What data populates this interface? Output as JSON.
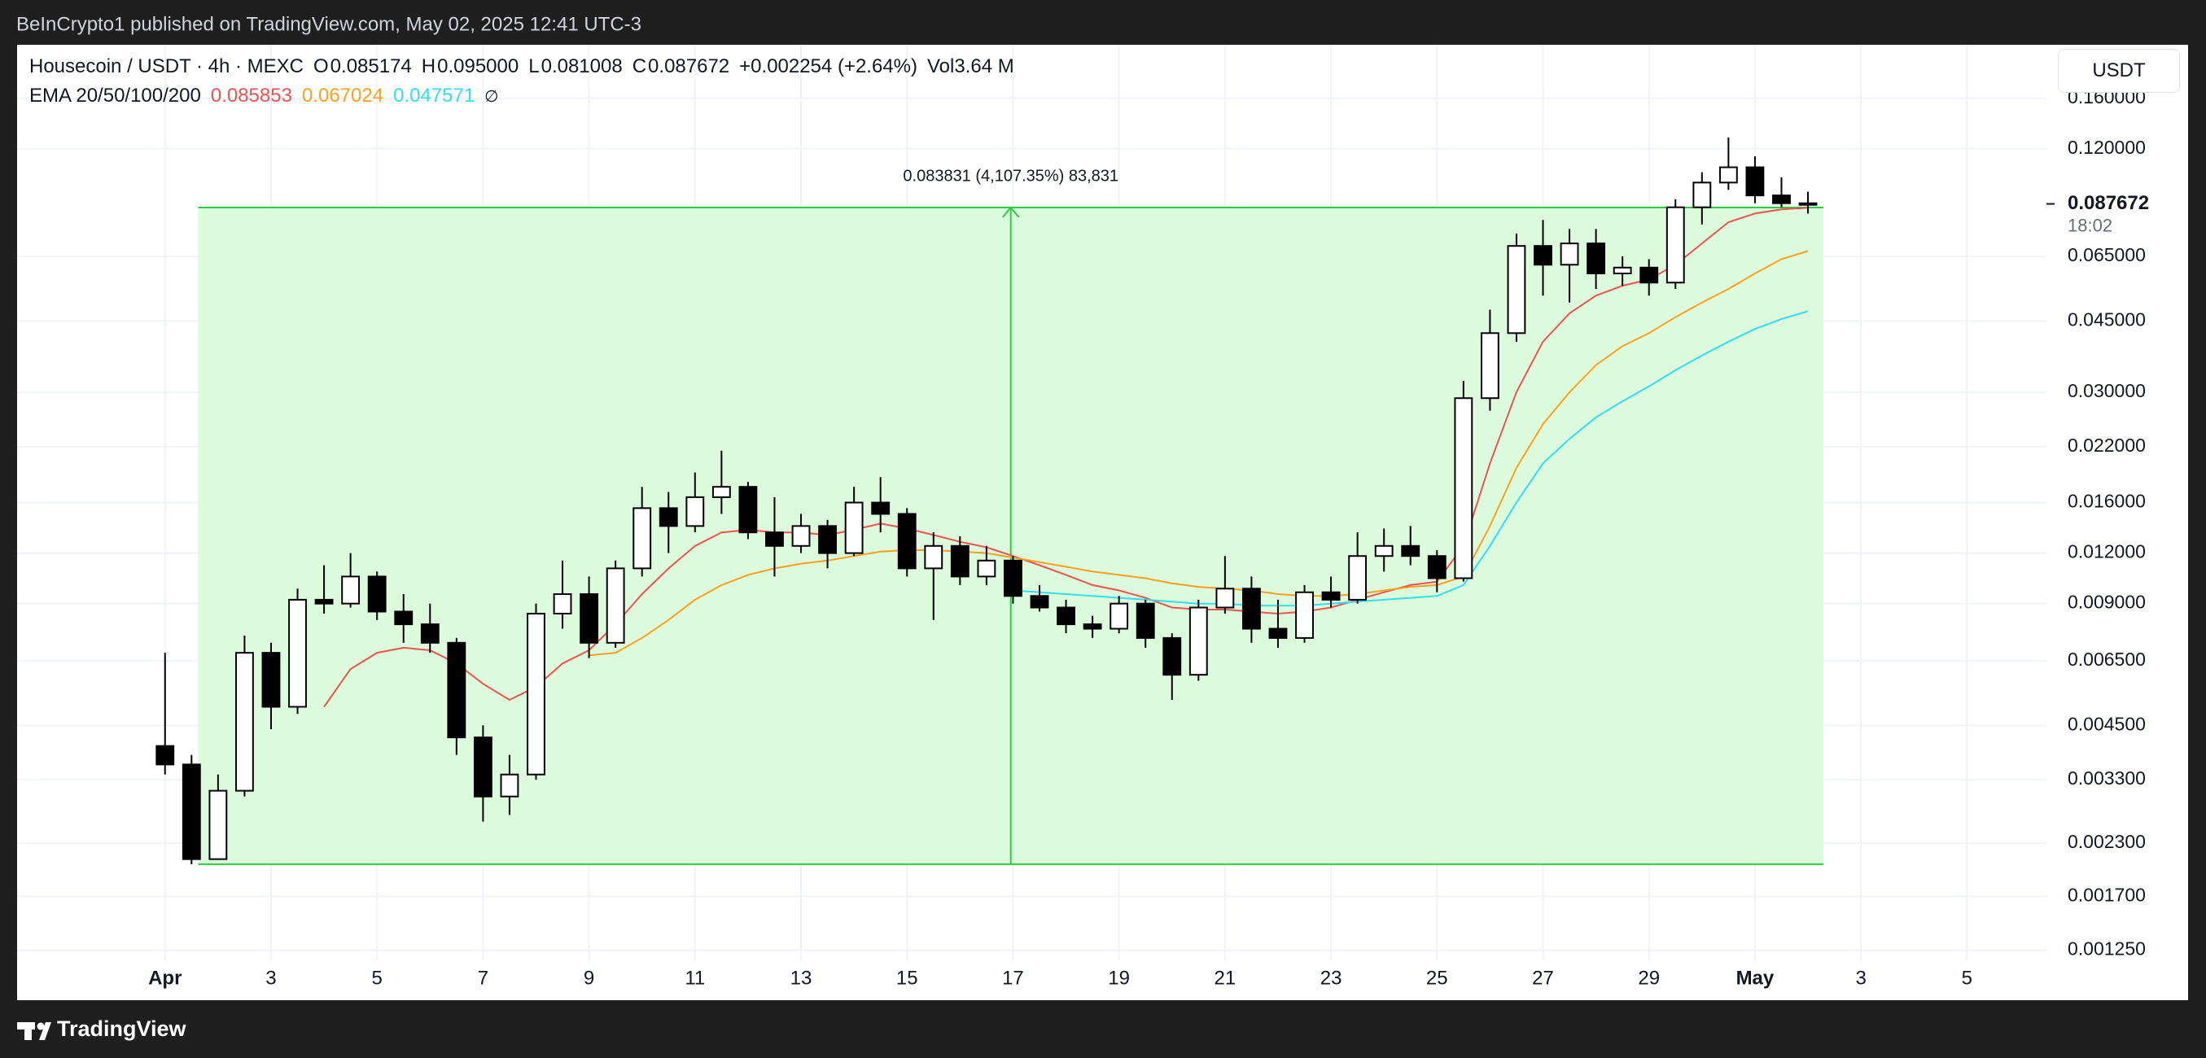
{
  "header": {
    "text": "BeInCrypto1 published on TradingView.com, May 02, 2025 12:41 UTC-3"
  },
  "footer": {
    "brand": "TradingView"
  },
  "chart_data": {
    "type": "candlestick",
    "legend": {
      "symbol": "Housecoin / USDT · 4h · MEXC",
      "ohlc": [
        {
          "label": "O",
          "value": "0.085174"
        },
        {
          "label": "H",
          "value": "0.095000"
        },
        {
          "label": "L",
          "value": "0.081008"
        },
        {
          "label": "C",
          "value": "0.087672"
        }
      ],
      "change": "+0.002254 (+2.64%)",
      "volume_label": "Vol",
      "volume": "3.64 M",
      "ema_label": "EMA 20/50/100/200",
      "ema_hidden": "∅"
    },
    "currency": "USDT",
    "log_scale": true,
    "grid": true,
    "up_color": "#ffffff",
    "down_color": "#000000",
    "x": [
      "2025-04-01T00:00",
      "2025-04-01T12:00",
      "2025-04-02T00:00",
      "2025-04-02T12:00",
      "2025-04-03T00:00",
      "2025-04-03T12:00",
      "2025-04-04T00:00",
      "2025-04-04T12:00",
      "2025-04-05T00:00",
      "2025-04-05T12:00",
      "2025-04-06T00:00",
      "2025-04-06T12:00",
      "2025-04-07T00:00",
      "2025-04-07T12:00",
      "2025-04-08T00:00",
      "2025-04-08T12:00",
      "2025-04-09T00:00",
      "2025-04-09T12:00",
      "2025-04-10T00:00",
      "2025-04-10T12:00",
      "2025-04-11T00:00",
      "2025-04-11T12:00",
      "2025-04-12T00:00",
      "2025-04-12T12:00",
      "2025-04-13T00:00",
      "2025-04-13T12:00",
      "2025-04-14T00:00",
      "2025-04-14T12:00",
      "2025-04-15T00:00",
      "2025-04-15T12:00",
      "2025-04-16T00:00",
      "2025-04-16T12:00",
      "2025-04-17T00:00",
      "2025-04-17T12:00",
      "2025-04-18T00:00",
      "2025-04-18T12:00",
      "2025-04-19T00:00",
      "2025-04-19T12:00",
      "2025-04-20T00:00",
      "2025-04-20T12:00",
      "2025-04-21T00:00",
      "2025-04-21T12:00",
      "2025-04-22T00:00",
      "2025-04-22T12:00",
      "2025-04-23T00:00",
      "2025-04-23T12:00",
      "2025-04-24T00:00",
      "2025-04-24T12:00",
      "2025-04-25T00:00",
      "2025-04-25T12:00",
      "2025-04-26T00:00",
      "2025-04-26T12:00",
      "2025-04-27T00:00",
      "2025-04-27T12:00",
      "2025-04-28T00:00",
      "2025-04-28T12:00",
      "2025-04-29T00:00",
      "2025-04-29T12:00",
      "2025-04-30T00:00",
      "2025-04-30T12:00",
      "2025-05-01T00:00",
      "2025-05-01T12:00",
      "2025-05-02T00:00"
    ],
    "open": [
      0.004,
      0.0036,
      0.0021,
      0.0031,
      0.0068,
      0.005,
      0.0092,
      0.009,
      0.0105,
      0.0086,
      0.008,
      0.0072,
      0.0042,
      0.003,
      0.0034,
      0.0085,
      0.0095,
      0.0072,
      0.011,
      0.0155,
      0.014,
      0.0165,
      0.0175,
      0.0135,
      0.0125,
      0.014,
      0.012,
      0.016,
      0.015,
      0.011,
      0.0125,
      0.0105,
      0.0115,
      0.0094,
      0.0088,
      0.008,
      0.0078,
      0.009,
      0.0074,
      0.006,
      0.0088,
      0.0098,
      0.0078,
      0.0074,
      0.0096,
      0.0092,
      0.0118,
      0.0125,
      0.0118,
      0.0104,
      0.029,
      0.042,
      0.069,
      0.062,
      0.07,
      0.059,
      0.061,
      0.056,
      0.086,
      0.099,
      0.108,
      0.092,
      0.088
    ],
    "high": [
      0.0068,
      0.0038,
      0.0034,
      0.0075,
      0.0072,
      0.0098,
      0.0112,
      0.012,
      0.0108,
      0.0095,
      0.009,
      0.0074,
      0.0045,
      0.0038,
      0.009,
      0.0115,
      0.0105,
      0.0115,
      0.0175,
      0.017,
      0.019,
      0.0215,
      0.018,
      0.0165,
      0.015,
      0.0145,
      0.0175,
      0.0185,
      0.0155,
      0.0135,
      0.0132,
      0.0125,
      0.0118,
      0.01,
      0.0092,
      0.0084,
      0.0094,
      0.0092,
      0.0076,
      0.0092,
      0.0118,
      0.0105,
      0.0092,
      0.01,
      0.0105,
      0.0135,
      0.0138,
      0.014,
      0.0122,
      0.032,
      0.048,
      0.074,
      0.08,
      0.076,
      0.076,
      0.065,
      0.064,
      0.09,
      0.105,
      0.128,
      0.115,
      0.102,
      0.094
    ],
    "low": [
      0.0034,
      0.00204,
      0.0022,
      0.003,
      0.0044,
      0.0048,
      0.0085,
      0.0088,
      0.0082,
      0.0072,
      0.0068,
      0.0038,
      0.0026,
      0.0027,
      0.0033,
      0.0078,
      0.0066,
      0.007,
      0.0105,
      0.012,
      0.0135,
      0.015,
      0.013,
      0.0105,
      0.012,
      0.011,
      0.0118,
      0.0135,
      0.0105,
      0.0082,
      0.01,
      0.01,
      0.009,
      0.0086,
      0.0076,
      0.0074,
      0.0076,
      0.007,
      0.0052,
      0.0058,
      0.0085,
      0.0072,
      0.007,
      0.0072,
      0.0088,
      0.009,
      0.0108,
      0.0112,
      0.0096,
      0.0102,
      0.027,
      0.04,
      0.052,
      0.05,
      0.054,
      0.055,
      0.052,
      0.054,
      0.078,
      0.095,
      0.088,
      0.086,
      0.083
    ],
    "close": [
      0.0036,
      0.0021,
      0.0031,
      0.0068,
      0.005,
      0.0092,
      0.009,
      0.0105,
      0.0086,
      0.008,
      0.0072,
      0.0042,
      0.003,
      0.0034,
      0.0085,
      0.0095,
      0.0072,
      0.011,
      0.0155,
      0.014,
      0.0165,
      0.0175,
      0.0135,
      0.0125,
      0.014,
      0.012,
      0.016,
      0.015,
      0.011,
      0.0125,
      0.0105,
      0.0115,
      0.0094,
      0.0088,
      0.008,
      0.0078,
      0.009,
      0.0074,
      0.006,
      0.0088,
      0.0098,
      0.0078,
      0.0074,
      0.0096,
      0.0092,
      0.0118,
      0.0125,
      0.0118,
      0.0104,
      0.029,
      0.042,
      0.069,
      0.062,
      0.07,
      0.059,
      0.061,
      0.056,
      0.086,
      0.099,
      0.108,
      0.092,
      0.088,
      0.087672
    ],
    "series": [
      {
        "color": "#f0524f",
        "legend_value": "0.085853",
        "values": [
          null,
          null,
          null,
          null,
          null,
          null,
          0.005,
          0.0062,
          0.0068,
          0.007,
          0.0069,
          0.0064,
          0.0057,
          0.0052,
          0.0056,
          0.0064,
          0.0069,
          0.008,
          0.0095,
          0.011,
          0.0125,
          0.0135,
          0.0137,
          0.0135,
          0.0135,
          0.0133,
          0.0137,
          0.0142,
          0.0138,
          0.0133,
          0.0128,
          0.0124,
          0.0118,
          0.0112,
          0.0106,
          0.01,
          0.0097,
          0.0093,
          0.0088,
          0.0087,
          0.0087,
          0.0086,
          0.0085,
          0.0086,
          0.0088,
          0.0092,
          0.0096,
          0.01,
          0.0102,
          0.0125,
          0.02,
          0.03,
          0.04,
          0.047,
          0.052,
          0.055,
          0.057,
          0.062,
          0.07,
          0.079,
          0.083,
          0.085,
          0.0858
        ]
      },
      {
        "color": "#ff9f1a",
        "legend_value": "0.067024",
        "values": [
          null,
          null,
          null,
          null,
          null,
          null,
          null,
          null,
          null,
          null,
          null,
          null,
          null,
          null,
          null,
          null,
          0.0067,
          0.0068,
          0.0074,
          0.0082,
          0.0092,
          0.01,
          0.0106,
          0.011,
          0.0113,
          0.0115,
          0.0118,
          0.0121,
          0.0122,
          0.0122,
          0.0121,
          0.012,
          0.0117,
          0.0114,
          0.0111,
          0.0108,
          0.0106,
          0.0104,
          0.0101,
          0.0099,
          0.0098,
          0.0097,
          0.0095,
          0.0094,
          0.0094,
          0.0095,
          0.0097,
          0.0099,
          0.01,
          0.0105,
          0.014,
          0.0195,
          0.025,
          0.03,
          0.035,
          0.039,
          0.042,
          0.046,
          0.05,
          0.054,
          0.059,
          0.064,
          0.067
        ]
      },
      {
        "color": "#2fe0f0",
        "legend_value": "0.047571",
        "values": [
          null,
          null,
          null,
          null,
          null,
          null,
          null,
          null,
          null,
          null,
          null,
          null,
          null,
          null,
          null,
          null,
          null,
          null,
          null,
          null,
          null,
          null,
          null,
          null,
          null,
          null,
          null,
          null,
          null,
          null,
          null,
          null,
          0.0097,
          0.0096,
          0.0095,
          0.0094,
          0.0093,
          0.0092,
          0.0091,
          0.009,
          0.009,
          0.0089,
          0.0089,
          0.0089,
          0.009,
          0.0091,
          0.0092,
          0.0093,
          0.0094,
          0.01,
          0.0125,
          0.016,
          0.02,
          0.023,
          0.026,
          0.0285,
          0.031,
          0.034,
          0.037,
          0.04,
          0.043,
          0.0455,
          0.0476
        ]
      }
    ],
    "measure": {
      "label": "0.083831 (4,107.35%) 83,831",
      "low": 0.00204,
      "high": 0.08587,
      "start": "2025-04-01T15:00",
      "end": "2025-05-02T07:00",
      "color": "#2ecc40",
      "fill": "#dcfadc"
    },
    "current_price": {
      "value": 0.087672,
      "label": "0.087672",
      "countdown": "18:02"
    },
    "xlim": [
      "2025-03-29T05:00",
      "2025-05-06T12:00"
    ],
    "xticks": [
      {
        "value": "2025-04-01T00:00",
        "label": "Apr"
      },
      {
        "value": "2025-04-03T00:00",
        "label": "3"
      },
      {
        "value": "2025-04-05T00:00",
        "label": "5"
      },
      {
        "value": "2025-04-07T00:00",
        "label": "7"
      },
      {
        "value": "2025-04-09T00:00",
        "label": "9"
      },
      {
        "value": "2025-04-11T00:00",
        "label": "11"
      },
      {
        "value": "2025-04-13T00:00",
        "label": "13"
      },
      {
        "value": "2025-04-15T00:00",
        "label": "15"
      },
      {
        "value": "2025-04-17T00:00",
        "label": "17"
      },
      {
        "value": "2025-04-19T00:00",
        "label": "19"
      },
      {
        "value": "2025-04-21T00:00",
        "label": "21"
      },
      {
        "value": "2025-04-23T00:00",
        "label": "23"
      },
      {
        "value": "2025-04-25T00:00",
        "label": "25"
      },
      {
        "value": "2025-04-27T00:00",
        "label": "27"
      },
      {
        "value": "2025-04-29T00:00",
        "label": "29"
      },
      {
        "value": "2025-05-01T00:00",
        "label": "May"
      },
      {
        "value": "2025-05-03T00:00",
        "label": "3"
      },
      {
        "value": "2025-05-05T00:00",
        "label": "5"
      }
    ],
    "ylim": [
      0.00118,
      0.217
    ],
    "yticks": [
      {
        "value": 0.16,
        "label": "0.160000"
      },
      {
        "value": 0.12,
        "label": "0.120000"
      },
      {
        "value": 0.065,
        "label": "0.065000"
      },
      {
        "value": 0.045,
        "label": "0.045000"
      },
      {
        "value": 0.03,
        "label": "0.030000"
      },
      {
        "value": 0.022,
        "label": "0.022000"
      },
      {
        "value": 0.016,
        "label": "0.016000"
      },
      {
        "value": 0.012,
        "label": "0.012000"
      },
      {
        "value": 0.009,
        "label": "0.009000"
      },
      {
        "value": 0.0065,
        "label": "0.006500"
      },
      {
        "value": 0.0045,
        "label": "0.004500"
      },
      {
        "value": 0.0033,
        "label": "0.003300"
      },
      {
        "value": 0.0023,
        "label": "0.002300"
      },
      {
        "value": 0.0017,
        "label": "0.001700"
      },
      {
        "value": 0.00125,
        "label": "0.001250"
      }
    ]
  }
}
